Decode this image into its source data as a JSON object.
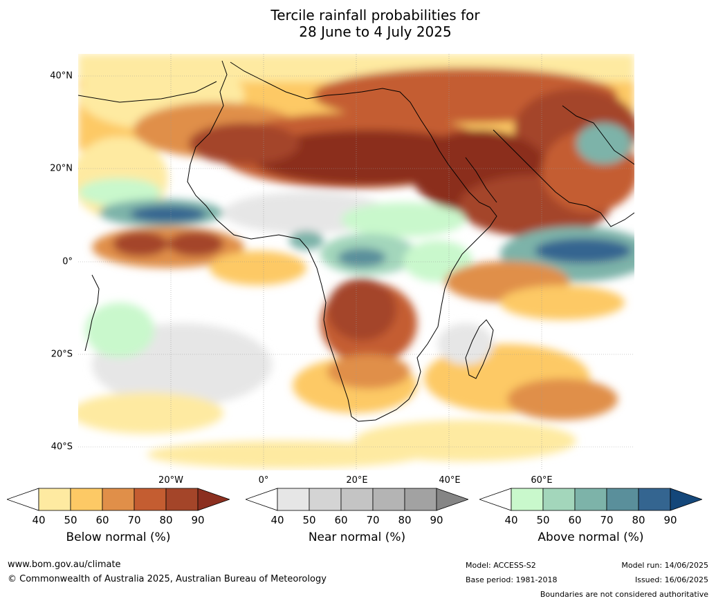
{
  "title": {
    "line1": "Tercile rainfall probabilities for",
    "line2": "28 June to 4 July 2025"
  },
  "map": {
    "lat_labels": [
      "40°N",
      "20°N",
      "0°",
      "20°S",
      "40°S"
    ],
    "lon_labels": [
      "20°W",
      "0°",
      "20°E",
      "40°E",
      "60°E"
    ]
  },
  "legend": {
    "below": {
      "label": "Below normal (%)",
      "ticks": [
        "40",
        "50",
        "60",
        "70",
        "80",
        "90"
      ],
      "colors": [
        "#ffffff",
        "#feeaa1",
        "#fdc965",
        "#e08f49",
        "#c45d31",
        "#a44529",
        "#8b2f1f"
      ]
    },
    "near": {
      "label": "Near normal (%)",
      "ticks": [
        "40",
        "50",
        "60",
        "70",
        "80",
        "90"
      ],
      "colors": [
        "#ffffff",
        "#e6e6e6",
        "#d4d4d4",
        "#c4c4c4",
        "#b4b4b4",
        "#a2a2a2",
        "#858585"
      ]
    },
    "above": {
      "label": "Above normal (%)",
      "ticks": [
        "40",
        "50",
        "60",
        "70",
        "80",
        "90"
      ],
      "colors": [
        "#ffffff",
        "#c9f8cc",
        "#a3d6bb",
        "#7db3a9",
        "#5a8f9b",
        "#346590",
        "#14477a"
      ]
    }
  },
  "footer": {
    "url": "www.bom.gov.au/climate",
    "copyright": "© Commonwealth of Australia 2025, Australian Bureau of Meteorology",
    "model": "Model: ACCESS-S2",
    "base_period": "Base period: 1981-2018",
    "model_run": "Model run: 14/06/2025",
    "issued": "Issued: 16/06/2025",
    "disclaimer": "Boundaries are not considered authoritative"
  }
}
